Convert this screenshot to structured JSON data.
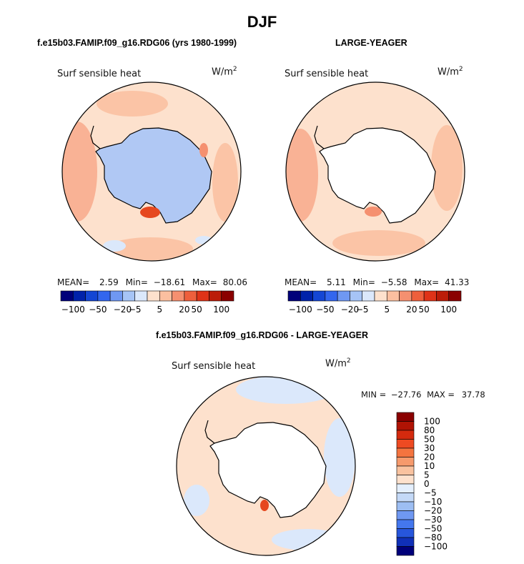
{
  "figure": {
    "title": "DJF"
  },
  "panels": {
    "p1": {
      "title": "f.e15b03.FAMIP.f09_g16.RDG06 (yrs 1980-1999)",
      "variable": "Surf sensible heat",
      "units_base": "W/m",
      "units_exp": "2",
      "stats": {
        "mean_label": "MEAN=",
        "mean": "2.59",
        "min_label": "Min=",
        "min": "−18.61",
        "max_label": "Max=",
        "max": "80.06"
      }
    },
    "p2": {
      "title": "LARGE-YEAGER",
      "variable": "Surf sensible heat",
      "units_base": "W/m",
      "units_exp": "2",
      "stats": {
        "mean_label": "MEAN=",
        "mean": "5.11",
        "min_label": "Min=",
        "min": "−5.58",
        "max_label": "Max=",
        "max": "41.33"
      }
    },
    "p3": {
      "title": "f.e15b03.FAMIP.f09_g16.RDG06 - LARGE-YEAGER",
      "variable": "Surf sensible heat",
      "units_base": "W/m",
      "units_exp": "2",
      "stats": {
        "min_label": "MIN =",
        "min": "−27.76",
        "max_label": "MAX =",
        "max": "37.78"
      }
    }
  },
  "colorbar_h": {
    "colors": [
      "#00007a",
      "#0022aa",
      "#1446d4",
      "#3366ee",
      "#6f98f2",
      "#a6c4f6",
      "#dbe8fb",
      "#fde1cd",
      "#fbbfa0",
      "#f59070",
      "#ee5f3c",
      "#df3318",
      "#bb1c08",
      "#8a0000"
    ],
    "labels": [
      "−100",
      "−50",
      "−20",
      "−5",
      "5",
      "20",
      "50",
      "100"
    ]
  },
  "colorbar_v": {
    "colors": [
      "#8a0000",
      "#b01304",
      "#d42a0e",
      "#ee4a22",
      "#f4743f",
      "#f69a6c",
      "#f9c29f",
      "#fde1cd",
      "#e4effd",
      "#c4d9f7",
      "#9dbef3",
      "#6f98f2",
      "#4477ee",
      "#2756dc",
      "#1030b8",
      "#00007a"
    ],
    "labels": [
      "100",
      "80",
      "50",
      "30",
      "20",
      "10",
      "5",
      "0",
      "−5",
      "−10",
      "−20",
      "−30",
      "−50",
      "−80",
      "−100"
    ]
  },
  "chart_data": {
    "type": "heatmap",
    "title": "DJF",
    "projection": "south polar stereographic",
    "variable": "Surf sensible heat",
    "units": "W/m^2",
    "panels": [
      {
        "name": "f.e15b03.FAMIP.f09_g16.RDG06 (yrs 1980-1999)",
        "mean": 2.59,
        "min": -18.61,
        "max": 80.06,
        "contour_levels": [
          -100,
          -50,
          -20,
          -5,
          5,
          20,
          50,
          100
        ]
      },
      {
        "name": "LARGE-YEAGER",
        "mean": 5.11,
        "min": -5.58,
        "max": 41.33,
        "contour_levels": [
          -100,
          -50,
          -20,
          -5,
          5,
          20,
          50,
          100
        ]
      },
      {
        "name": "f.e15b03.FAMIP.f09_g16.RDG06 - LARGE-YEAGER",
        "min": -27.76,
        "max": 37.78,
        "contour_levels": [
          -100,
          -80,
          -50,
          -30,
          -20,
          -10,
          -5,
          0,
          5,
          10,
          20,
          30,
          50,
          80,
          100
        ]
      }
    ]
  }
}
